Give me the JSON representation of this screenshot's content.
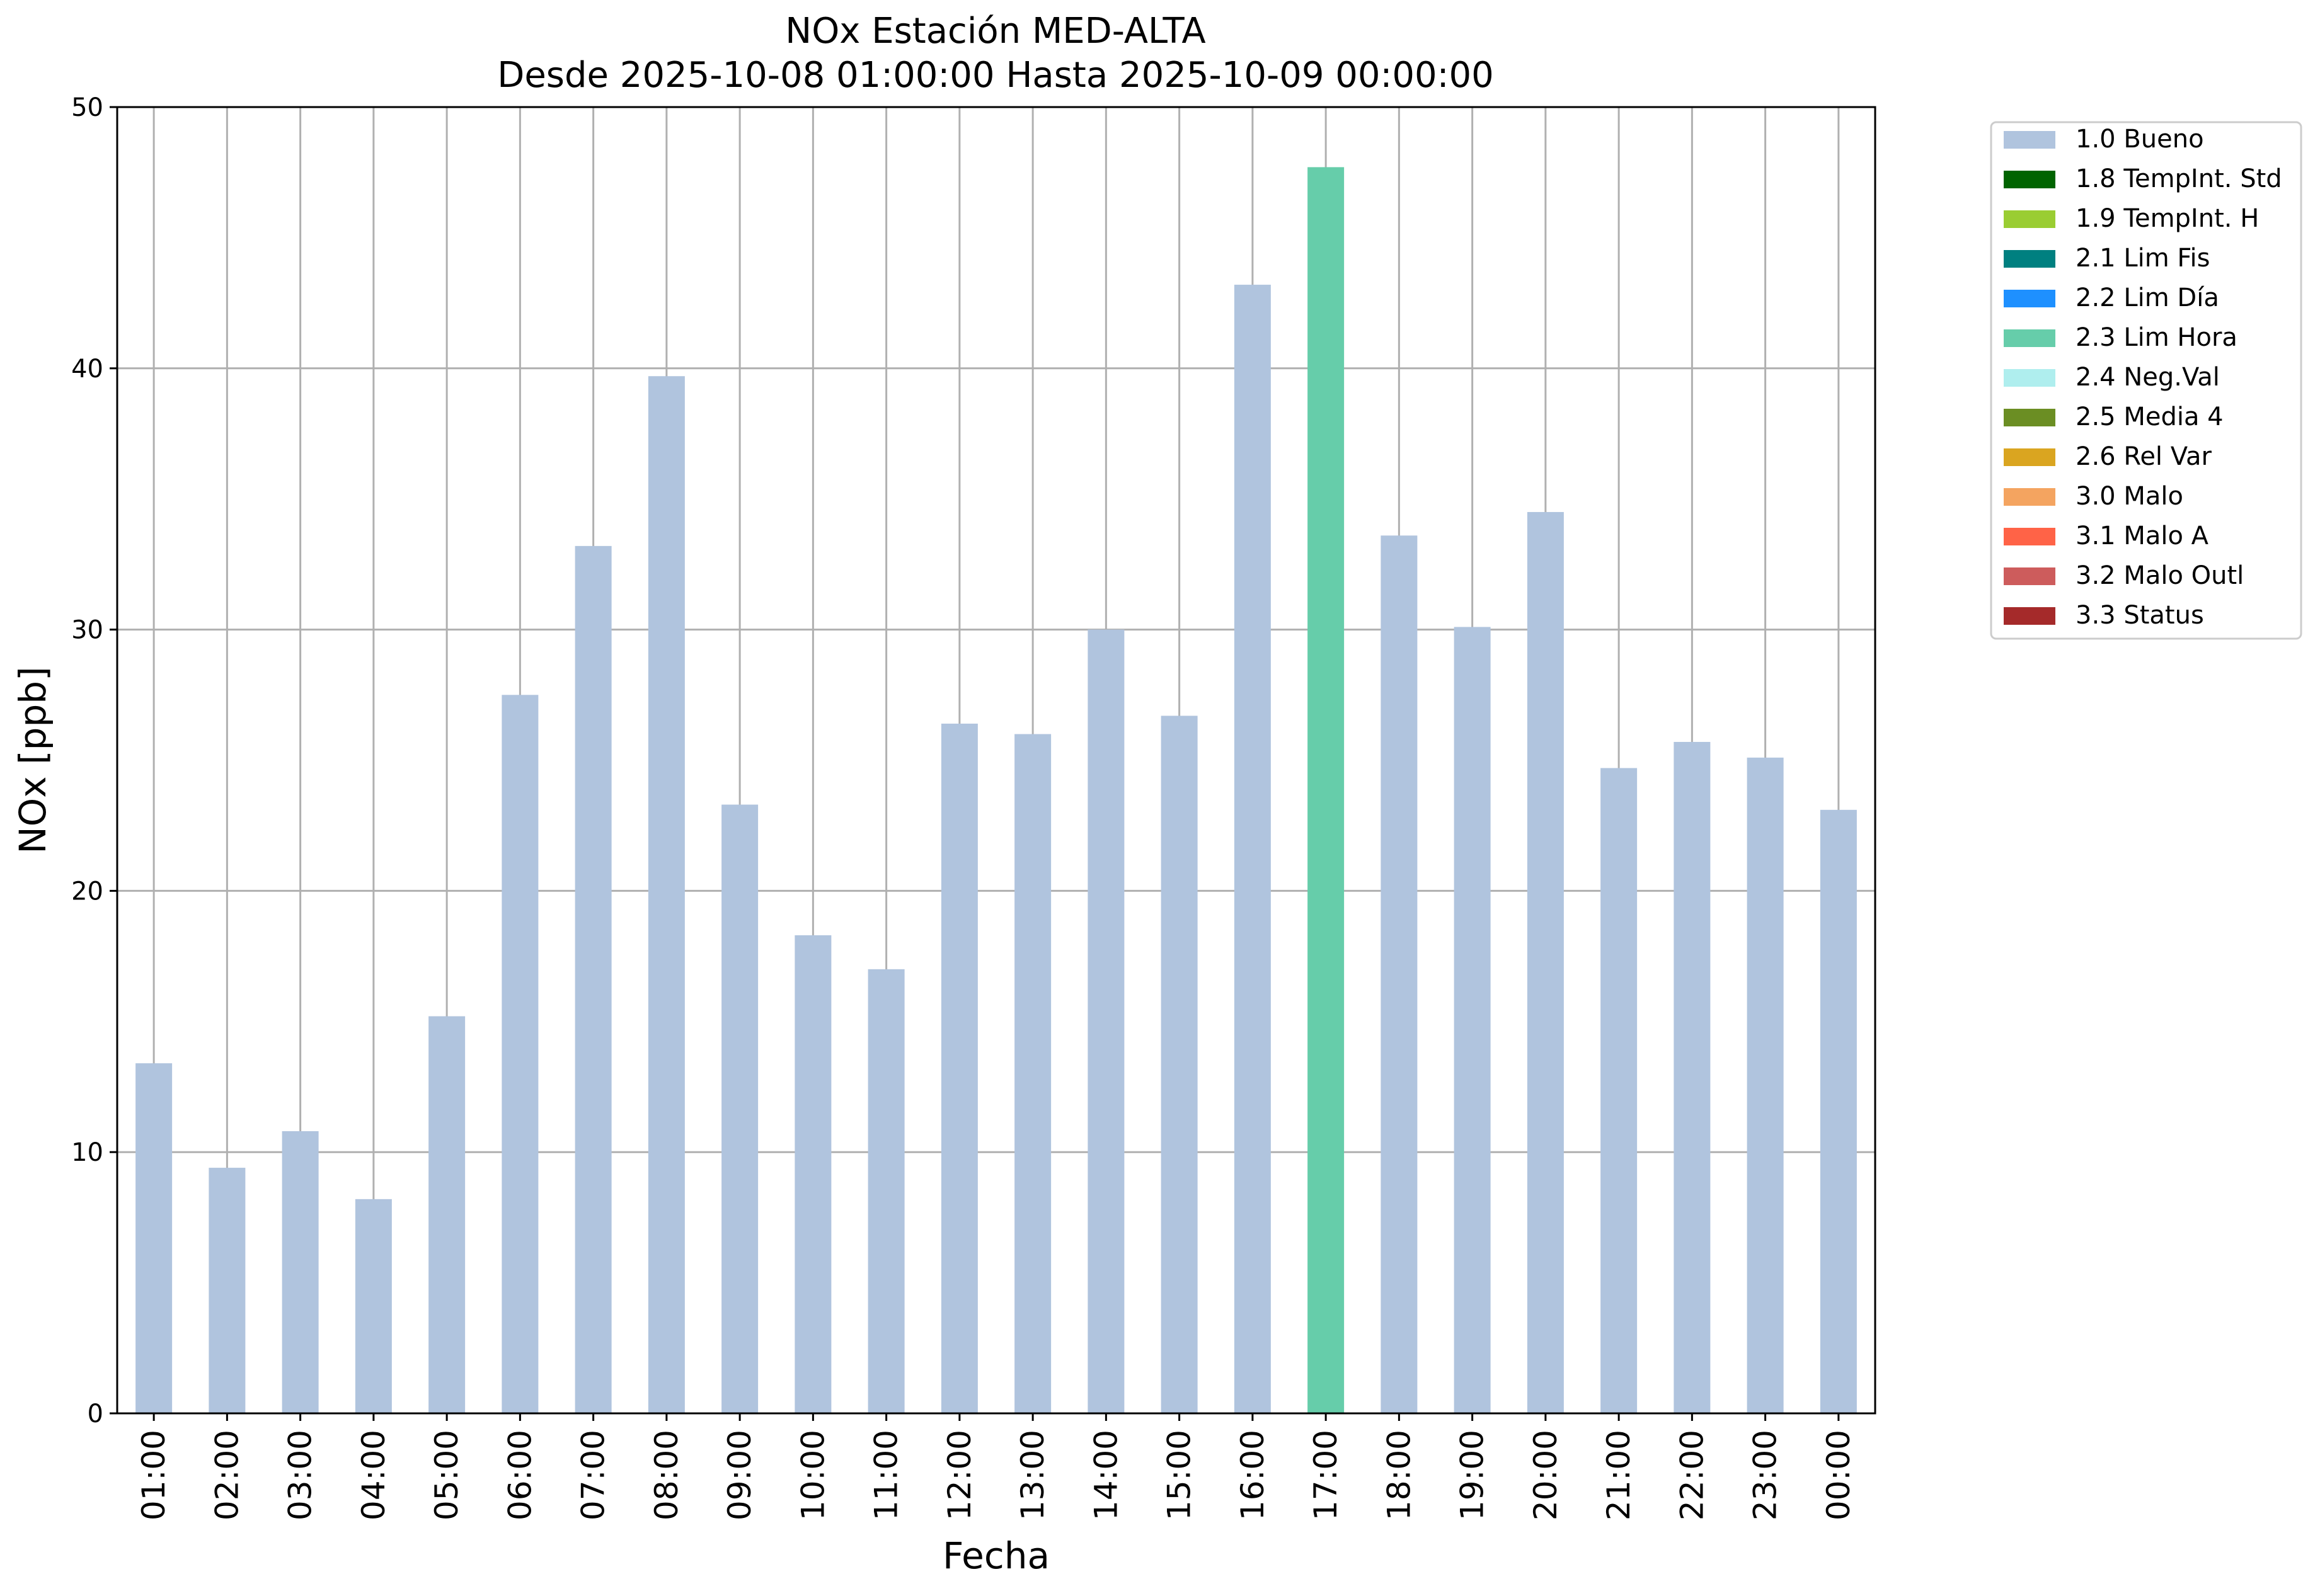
{
  "chart_data": {
    "type": "bar",
    "title": "NOx Estación MED-ALTA",
    "subtitle": "Desde 2025-10-08 01:00:00 Hasta 2025-10-09 00:00:00",
    "xlabel": "Fecha",
    "ylabel": "NOx [ppb]",
    "ylim": [
      0,
      50
    ],
    "yticks": [
      "0",
      "10",
      "20",
      "30",
      "40",
      "50"
    ],
    "grid": true,
    "legend_position": "outside-top-right",
    "categories": [
      "01:00",
      "02:00",
      "03:00",
      "04:00",
      "05:00",
      "06:00",
      "07:00",
      "08:00",
      "09:00",
      "10:00",
      "11:00",
      "12:00",
      "13:00",
      "14:00",
      "15:00",
      "16:00",
      "17:00",
      "18:00",
      "19:00",
      "20:00",
      "21:00",
      "22:00",
      "23:00",
      "00:00"
    ],
    "values": [
      13.4,
      9.4,
      10.8,
      8.2,
      15.2,
      27.5,
      33.2,
      39.7,
      23.3,
      18.3,
      17.0,
      26.4,
      26.0,
      30.0,
      26.7,
      43.2,
      47.7,
      33.6,
      30.1,
      34.5,
      24.7,
      25.7,
      25.1,
      23.1
    ],
    "bar_flags": [
      "1.0 Bueno",
      "1.0 Bueno",
      "1.0 Bueno",
      "1.0 Bueno",
      "1.0 Bueno",
      "1.0 Bueno",
      "1.0 Bueno",
      "1.0 Bueno",
      "1.0 Bueno",
      "1.0 Bueno",
      "1.0 Bueno",
      "1.0 Bueno",
      "1.0 Bueno",
      "1.0 Bueno",
      "1.0 Bueno",
      "1.0 Bueno",
      "2.3 Lim Hora",
      "1.0 Bueno",
      "1.0 Bueno",
      "1.0 Bueno",
      "1.0 Bueno",
      "1.0 Bueno",
      "1.0 Bueno",
      "1.0 Bueno"
    ],
    "legend": [
      {
        "label": "1.0 Bueno",
        "color": "#b0c4de"
      },
      {
        "label": "1.8 TempInt. Std",
        "color": "#006400"
      },
      {
        "label": "1.9 TempInt. H",
        "color": "#9acd32"
      },
      {
        "label": "2.1 Lim Fis",
        "color": "#008080"
      },
      {
        "label": "2.2 Lim Día",
        "color": "#1e90ff"
      },
      {
        "label": "2.3 Lim Hora",
        "color": "#66cdaa"
      },
      {
        "label": "2.4 Neg.Val",
        "color": "#afeeee"
      },
      {
        "label": "2.5 Media 4",
        "color": "#6b8e23"
      },
      {
        "label": "2.6 Rel Var",
        "color": "#daa520"
      },
      {
        "label": "3.0 Malo",
        "color": "#f4a460"
      },
      {
        "label": "3.1 Malo A",
        "color": "#ff6347"
      },
      {
        "label": "3.2 Malo Outl",
        "color": "#cd5c5c"
      },
      {
        "label": "3.3 Status",
        "color": "#a52a2a"
      }
    ]
  }
}
